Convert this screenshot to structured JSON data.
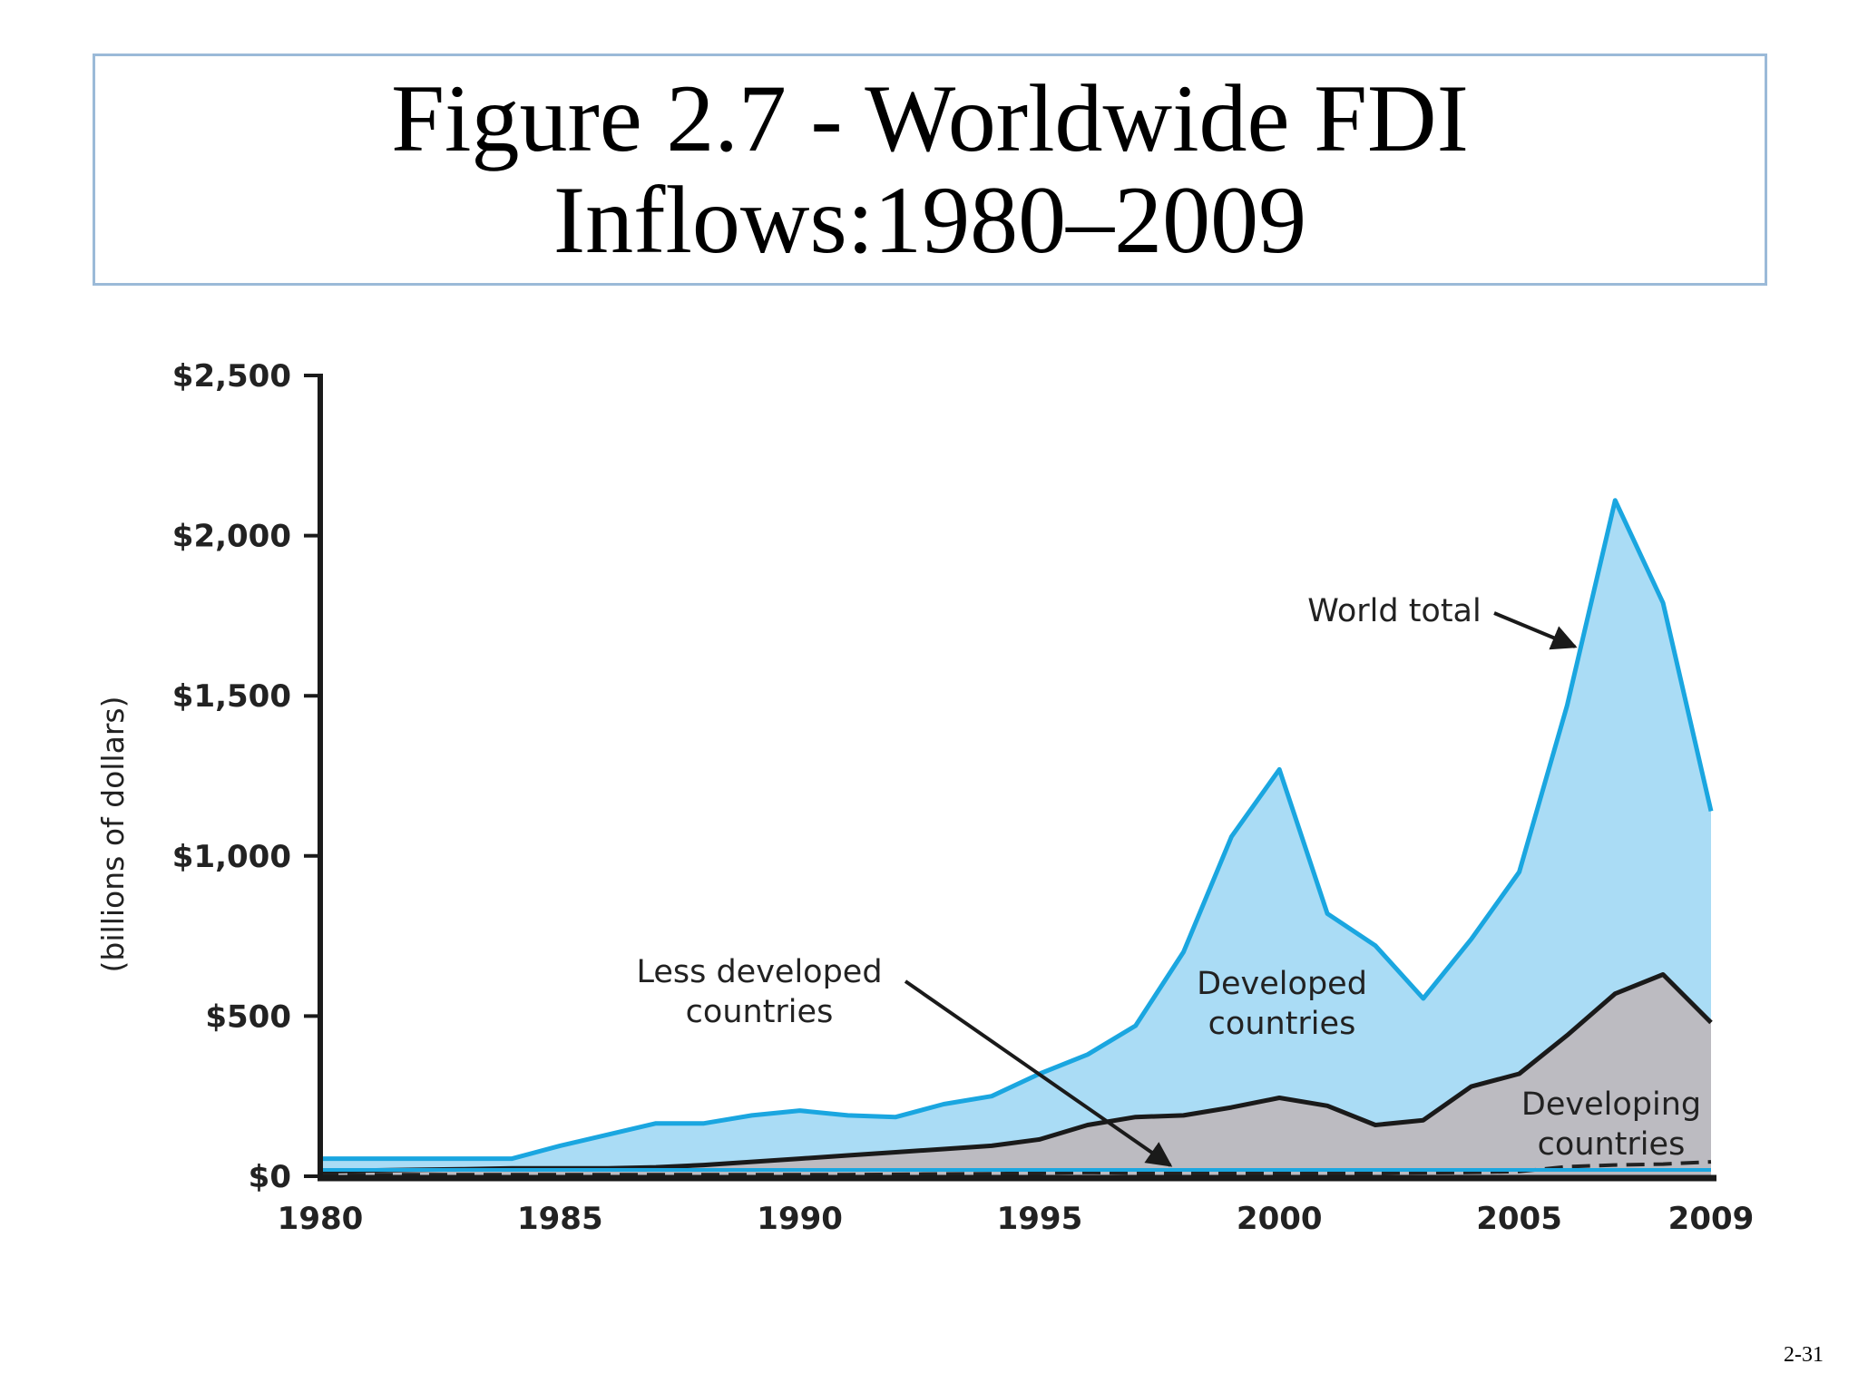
{
  "slide": {
    "title": "Figure 2.7 - Worldwide FDI Inflows:1980–2009",
    "page_number": "2-31"
  },
  "chart_data": {
    "type": "area",
    "title": "Figure 2.7 - Worldwide FDI Inflows:1980–2009",
    "xlabel": "",
    "ylabel": "(billions of dollars)",
    "xlim": [
      1980,
      2009
    ],
    "ylim": [
      0,
      2500
    ],
    "x_ticks": [
      1980,
      1985,
      1990,
      1995,
      2000,
      2005,
      2009
    ],
    "y_ticks": [
      0,
      500,
      1000,
      1500,
      2000,
      2500
    ],
    "y_tick_labels": [
      "$0",
      "$500",
      "$1,000",
      "$1,500",
      "$2,000",
      "$2,500"
    ],
    "x": [
      1980,
      1981,
      1982,
      1983,
      1984,
      1985,
      1986,
      1987,
      1988,
      1989,
      1990,
      1991,
      1992,
      1993,
      1994,
      1995,
      1996,
      1997,
      1998,
      1999,
      2000,
      2001,
      2002,
      2003,
      2004,
      2005,
      2006,
      2007,
      2008,
      2009
    ],
    "series": [
      {
        "name": "World total",
        "color": "#1aa6e0",
        "fill": "#aadcf5",
        "values": [
          55,
          55,
          55,
          55,
          55,
          95,
          130,
          165,
          165,
          190,
          205,
          190,
          185,
          225,
          250,
          320,
          380,
          470,
          700,
          1060,
          1270,
          820,
          720,
          555,
          740,
          950,
          1470,
          2110,
          1790,
          1140
        ]
      },
      {
        "name": "Developing countries",
        "color": "#1a1a1a",
        "fill": "#bcbbc1",
        "values": [
          15,
          18,
          20,
          22,
          25,
          25,
          25,
          28,
          35,
          45,
          55,
          65,
          75,
          85,
          95,
          115,
          160,
          185,
          190,
          215,
          245,
          220,
          160,
          175,
          280,
          320,
          440,
          570,
          630,
          480
        ]
      },
      {
        "name": "Less developed countries",
        "color": "#222222",
        "dashed": true,
        "values": [
          5,
          5,
          5,
          5,
          5,
          5,
          5,
          5,
          5,
          5,
          5,
          5,
          6,
          7,
          8,
          10,
          12,
          10,
          10,
          10,
          10,
          10,
          10,
          11,
          12,
          15,
          30,
          35,
          38,
          45
        ]
      }
    ],
    "annotations": [
      {
        "label": "World total",
        "lines": [
          "World total"
        ]
      },
      {
        "label": "Developed countries",
        "lines": [
          "Developed",
          "countries"
        ]
      },
      {
        "label": "Developing countries",
        "lines": [
          "Developing",
          "countries"
        ]
      },
      {
        "label": "Less developed countries",
        "lines": [
          "Less developed",
          "countries"
        ]
      }
    ],
    "grid": false,
    "legend": "none"
  }
}
